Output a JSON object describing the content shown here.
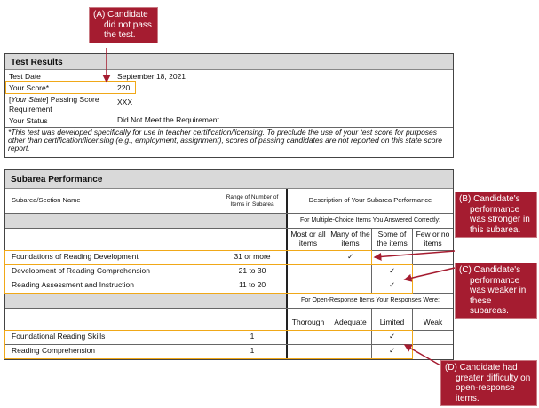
{
  "callouts": {
    "a": {
      "lead": "(A) Candidate",
      "rest": "did not pass the test."
    },
    "b": {
      "lead": "(B) Candidate's",
      "rest": "performance was stronger in this subarea."
    },
    "c": {
      "lead": "(C) Candidate's",
      "rest": "performance was weaker in these subareas."
    },
    "d": {
      "lead": "(D) Candidate had",
      "rest": "greater difficulty on open-response items."
    }
  },
  "test_results": {
    "title": "Test Results",
    "rows": [
      {
        "label": "Test Date",
        "value": "September 18, 2021"
      },
      {
        "label": "Your Score*",
        "value": "220"
      },
      {
        "label_italic": "Your State",
        "label_pre": "[",
        "label_post": "] Passing Score Requirement",
        "value": "XXX"
      },
      {
        "label": "Your Status",
        "value": "Did Not Meet the Requirement"
      }
    ],
    "footnote": "*This test was developed specifically for use in teacher certification/licensing. To preclude the use of your test score for purposes other than certification/licensing (e.g., employment, assignment), scores of passing candidates are not reported on this state score report."
  },
  "subarea": {
    "title": "Subarea Performance",
    "col_name": "Subarea/Section Name",
    "col_range": "Range of Number of Items in Subarea",
    "col_desc": "Description of Your Subarea Performance",
    "mc_caption": "For Multiple-Choice Items You Answered Correctly:",
    "mc_levels": [
      "Most or all items",
      "Many of the items",
      "Some of the items",
      "Few or no items"
    ],
    "mc_rows": [
      {
        "name": "Foundations of Reading Development",
        "range": "31 or more",
        "check": 1
      },
      {
        "name": "Development of Reading Comprehension",
        "range": "21 to 30",
        "check": 2
      },
      {
        "name": "Reading Assessment and Instruction",
        "range": "11 to 20",
        "check": 2
      }
    ],
    "or_caption": "For Open-Response Items Your Responses Were:",
    "or_levels": [
      "Thorough",
      "Adequate",
      "Limited",
      "Weak"
    ],
    "or_rows": [
      {
        "name": "Foundational Reading Skills",
        "range": "1",
        "check": 2
      },
      {
        "name": "Reading Comprehension",
        "range": "1",
        "check": 2
      }
    ],
    "check_mark": "✓"
  },
  "colors": {
    "callout": "#a51c30",
    "highlight": "#f0a818",
    "header": "#d9d9d9"
  }
}
